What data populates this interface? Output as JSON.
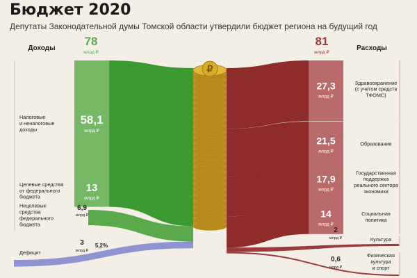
{
  "title": "Бюджет 2020",
  "subtitle": "Депутаты Законодательной думы Томской области утвердили бюджет региона на будущий год",
  "colors": {
    "income_strong": "#5aa94a",
    "income_flow": "#3c9a32",
    "income_light": "#74b866",
    "expense_strong": "#9b3a3a",
    "expense_flow": "#8e2c2c",
    "expense_light": "#b96b6b",
    "deficit": "#8f93cf",
    "coin": "#d4a92a",
    "background": "#f3efe6"
  },
  "chart_data": {
    "type": "sankey",
    "unit": "млрд ₽",
    "income": {
      "header": "Доходы",
      "total": "78",
      "total_unit": "млрд ₽",
      "items": [
        {
          "label": "Налоговые\nи неналоговые\nдоходы",
          "value": 58.1,
          "value_text": "58,1",
          "unit": "млрд ₽"
        },
        {
          "label": "Целевые средства\nот федерального\nбюджета",
          "value": 13,
          "value_text": "13",
          "unit": "млрд ₽"
        },
        {
          "label": "Нецелевые\nсредства\nфедерального\nбюджета",
          "value": 6.9,
          "value_text": "6,9",
          "unit": "млрд ₽"
        },
        {
          "label": "Дефицит",
          "value": 3,
          "value_text": "3",
          "unit": "млрд ₽",
          "share": "5,2%"
        }
      ]
    },
    "expense": {
      "header": "Расходы",
      "total": "81",
      "total_unit": "млрд ₽",
      "items": [
        {
          "label": "Здравоохранение\n(с учетом средств\nТФОМС)",
          "value": 27.3,
          "value_text": "27,3",
          "unit": "млрд ₽"
        },
        {
          "label": "Образование",
          "value": 21.5,
          "value_text": "21,5",
          "unit": "млрд ₽"
        },
        {
          "label": "Государственная\nподдержка\nреального сектора\nэкономики",
          "value": 17.9,
          "value_text": "17,9",
          "unit": "млрд ₽"
        },
        {
          "label": "Социальная\nполитика",
          "value": 14,
          "value_text": "14",
          "unit": "млрд ₽"
        },
        {
          "label": "Культура",
          "value": 2,
          "value_text": "2",
          "unit": "млрд ₽"
        },
        {
          "label": "Физическая\nкультура\nи спорт",
          "value": 0.6,
          "value_text": "0,6",
          "unit": "млрд ₽"
        }
      ]
    },
    "center_icon": "ruble-coin-stack-icon"
  }
}
